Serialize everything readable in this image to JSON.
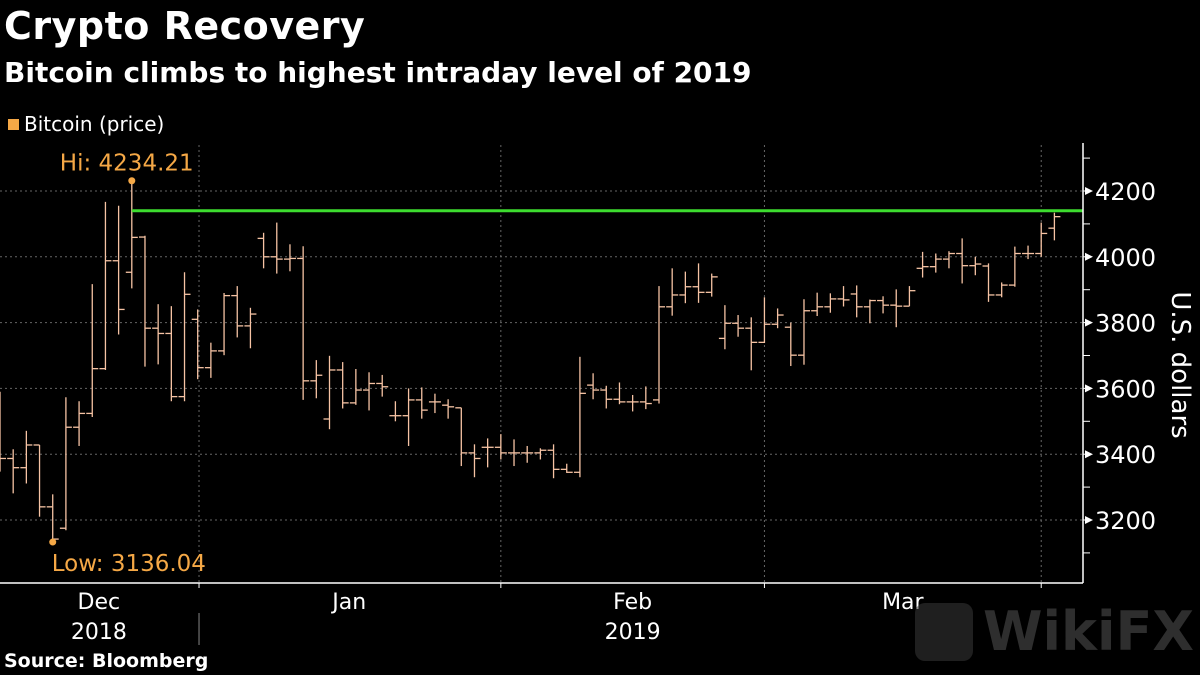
{
  "header": {
    "title": "Crypto Recovery",
    "subtitle": "Bitcoin climbs to highest intraday level of 2019",
    "source": "Source: Bloomberg"
  },
  "watermark": "WikiFX",
  "colors": {
    "bars": "#f6c3a4",
    "annotation": "#f5a846",
    "resistance": "#3ddc2f",
    "grid": "#666666",
    "axis": "#ffffff"
  },
  "chart_data": {
    "type": "ohlc",
    "title": "Crypto Recovery",
    "subtitle": "Bitcoin climbs to highest intraday level of 2019",
    "legend": [
      {
        "label": "Bitcoin (price)",
        "color": "#f5a846"
      }
    ],
    "legend_placement": "top-left",
    "ylabel": "U.S. dollars",
    "ylim": [
      3010,
      4340
    ],
    "yticks": [
      3200,
      3400,
      3600,
      3800,
      4000,
      4200
    ],
    "yminor_step": 100,
    "grid": true,
    "xticks": [
      {
        "label": "Dec",
        "year": "2018",
        "pos": 7.5
      },
      {
        "label": "Jan",
        "year": "",
        "pos": 26.5
      },
      {
        "label": "Feb",
        "year": "2019",
        "pos": 48
      },
      {
        "label": "Mar",
        "year": "",
        "pos": 68.5
      }
    ],
    "x_gridlines": [
      15.1,
      38.0,
      58.0,
      79.0
    ],
    "year_separator": 15.1,
    "annotations": {
      "high": {
        "label": "Hi: 4234.21",
        "value": 4234.21,
        "index": 10
      },
      "low": {
        "label": "Low: 3136.04",
        "value": 3136.04,
        "index": 4
      },
      "resistance_line": {
        "value": 4140,
        "from_index": 10
      }
    },
    "ohlc": [
      [
        3560,
        3590,
        3347,
        3387
      ],
      [
        3387,
        3415,
        3281,
        3359
      ],
      [
        3359,
        3471,
        3311,
        3428
      ],
      [
        3428,
        3428,
        3210,
        3240
      ],
      [
        3240,
        3278,
        3136,
        3142
      ],
      [
        3175,
        3573,
        3169,
        3482
      ],
      [
        3482,
        3561,
        3425,
        3524
      ],
      [
        3524,
        3917,
        3513,
        3660
      ],
      [
        3660,
        4167,
        3656,
        3988
      ],
      [
        3988,
        4155,
        3764,
        3840
      ],
      [
        3953,
        4234,
        3904,
        4059
      ],
      [
        4060,
        4064,
        3666,
        3783
      ],
      [
        3783,
        3856,
        3673,
        3767
      ],
      [
        3767,
        3850,
        3561,
        3575
      ],
      [
        3575,
        3953,
        3561,
        3886
      ],
      [
        3810,
        3840,
        3628,
        3663
      ],
      [
        3663,
        3739,
        3632,
        3714
      ],
      [
        3714,
        3890,
        3701,
        3882
      ],
      [
        3882,
        3911,
        3755,
        3790
      ],
      [
        3790,
        3845,
        3722,
        3826
      ],
      [
        4056,
        4073,
        3965,
        4000
      ],
      [
        4000,
        4104,
        3949,
        3993
      ],
      [
        3993,
        4038,
        3956,
        3995
      ],
      [
        3995,
        4032,
        3565,
        3623
      ],
      [
        3623,
        3686,
        3570,
        3640
      ],
      [
        3507,
        3699,
        3476,
        3656
      ],
      [
        3656,
        3680,
        3539,
        3556
      ],
      [
        3556,
        3659,
        3550,
        3595
      ],
      [
        3595,
        3649,
        3533,
        3615
      ],
      [
        3615,
        3641,
        3575,
        3605
      ],
      [
        3517,
        3561,
        3500,
        3517
      ],
      [
        3517,
        3600,
        3425,
        3565
      ],
      [
        3565,
        3603,
        3508,
        3534
      ],
      [
        3559,
        3584,
        3525,
        3559
      ],
      [
        3549,
        3567,
        3508,
        3544
      ],
      [
        3541,
        3541,
        3364,
        3404
      ],
      [
        3404,
        3430,
        3330,
        3387
      ],
      [
        3421,
        3448,
        3360,
        3421
      ],
      [
        3421,
        3461,
        3384,
        3404
      ],
      [
        3404,
        3445,
        3364,
        3404
      ],
      [
        3404,
        3425,
        3374,
        3404
      ],
      [
        3404,
        3418,
        3384,
        3412
      ],
      [
        3412,
        3430,
        3327,
        3354
      ],
      [
        3354,
        3371,
        3343,
        3345
      ],
      [
        3345,
        3696,
        3330,
        3585
      ],
      [
        3610,
        3646,
        3567,
        3595
      ],
      [
        3595,
        3608,
        3539,
        3567
      ],
      [
        3567,
        3618,
        3552,
        3559
      ],
      [
        3559,
        3580,
        3530,
        3559
      ],
      [
        3559,
        3606,
        3537,
        3554
      ],
      [
        3565,
        3911,
        3554,
        3848
      ],
      [
        3848,
        3965,
        3821,
        3884
      ],
      [
        3884,
        3955,
        3859,
        3909
      ],
      [
        3909,
        3980,
        3860,
        3892
      ],
      [
        3892,
        3949,
        3879,
        3939
      ],
      [
        3752,
        3853,
        3719,
        3798
      ],
      [
        3798,
        3823,
        3757,
        3783
      ],
      [
        3783,
        3816,
        3655,
        3740
      ],
      [
        3740,
        3877,
        3738,
        3795
      ],
      [
        3795,
        3843,
        3783,
        3823
      ],
      [
        3786,
        3800,
        3668,
        3701
      ],
      [
        3701,
        3871,
        3672,
        3836
      ],
      [
        3836,
        3891,
        3820,
        3848
      ],
      [
        3848,
        3889,
        3830,
        3872
      ],
      [
        3872,
        3911,
        3849,
        3869
      ],
      [
        3887,
        3913,
        3816,
        3848
      ],
      [
        3848,
        3870,
        3798,
        3867
      ],
      [
        3867,
        3880,
        3828,
        3853
      ],
      [
        3853,
        3901,
        3786,
        3850
      ],
      [
        3850,
        3911,
        3850,
        3897
      ],
      [
        3965,
        4015,
        3937,
        3970
      ],
      [
        3970,
        4010,
        3952,
        3993
      ],
      [
        3993,
        4017,
        3965,
        4010
      ],
      [
        4010,
        4056,
        3919,
        3973
      ],
      [
        3973,
        4000,
        3944,
        3978
      ],
      [
        3972,
        3980,
        3863,
        3884
      ],
      [
        3884,
        3922,
        3877,
        3914
      ],
      [
        3914,
        4031,
        3909,
        4010
      ],
      [
        4010,
        4034,
        3993,
        4010
      ],
      [
        4010,
        4104,
        4000,
        4071
      ],
      [
        4087,
        4134,
        4050,
        4122
      ]
    ]
  }
}
